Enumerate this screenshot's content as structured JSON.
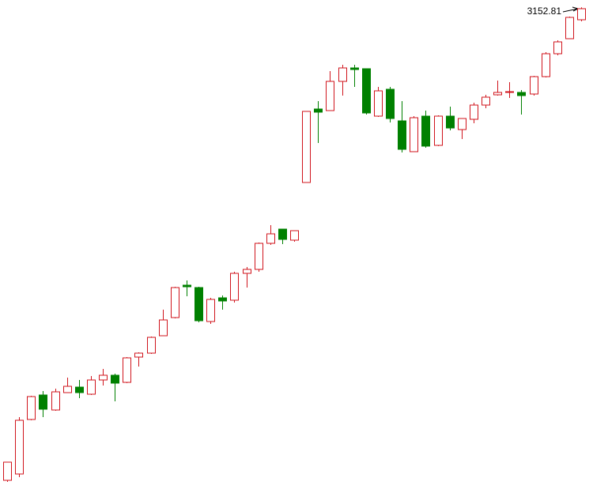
{
  "chart_data": {
    "type": "candlestick",
    "open": [
      2554,
      2562,
      2631,
      2662,
      2643,
      2665,
      2672,
      2663,
      2681,
      2687,
      2678,
      2710,
      2715,
      2737,
      2760,
      2801,
      2798,
      2755,
      2785,
      2782,
      2816,
      2821,
      2854,
      2872,
      2858,
      2931,
      3024,
      3022,
      3059,
      3076,
      3075,
      3015,
      3049,
      3009,
      2970,
      3015,
      2978,
      3015,
      2998,
      3011,
      3029,
      3042,
      3045,
      3045,
      3043,
      3065,
      3094,
      3113,
      3137
    ],
    "high": [
      2577,
      2634,
      2661,
      2667,
      2670,
      2684,
      2681,
      2686,
      2695,
      2689,
      2710,
      2716,
      2736,
      2770,
      2799,
      2807,
      2799,
      2785,
      2788,
      2818,
      2824,
      2855,
      2877,
      2872,
      2870,
      3021,
      3034,
      3072,
      3080,
      3080,
      3075,
      3052,
      3052,
      3034,
      3015,
      3022,
      3016,
      3027,
      3012,
      3032,
      3042,
      3060,
      3058,
      3048,
      3066,
      3096,
      3111,
      3141,
      3152.81
    ],
    "low": [
      2552,
      2558,
      2630,
      2634,
      2642,
      2665,
      2658,
      2662,
      2674,
      2654,
      2677,
      2698,
      2714,
      2737,
      2759,
      2787,
      2754,
      2752,
      2770,
      2779,
      2798,
      2818,
      2852,
      2853,
      2856,
      2931,
      2981,
      3022,
      3041,
      3052,
      3017,
      3014,
      3007,
      2969,
      2970,
      2975,
      2977,
      2997,
      2986,
      3006,
      3025,
      3041,
      3038,
      3017,
      3041,
      3064,
      3092,
      3113,
      3135
    ],
    "close": [
      2577,
      2630,
      2660,
      2644,
      2666,
      2673,
      2665,
      2681,
      2687,
      2677,
      2709,
      2715,
      2735,
      2757,
      2798,
      2799,
      2756,
      2783,
      2781,
      2816,
      2821,
      2854,
      2866,
      2859,
      2870,
      3021,
      3020,
      3059,
      3076,
      3074,
      3019,
      3047,
      3012,
      2973,
      3013,
      2977,
      3015,
      3000,
      3012,
      3029,
      3039,
      3045,
      3046,
      3041,
      3065,
      3094,
      3109,
      3140,
      3151
    ],
    "up_color": "#d0141c",
    "down_color": "#008000",
    "ylim": [
      2550,
      3160
    ]
  }
}
